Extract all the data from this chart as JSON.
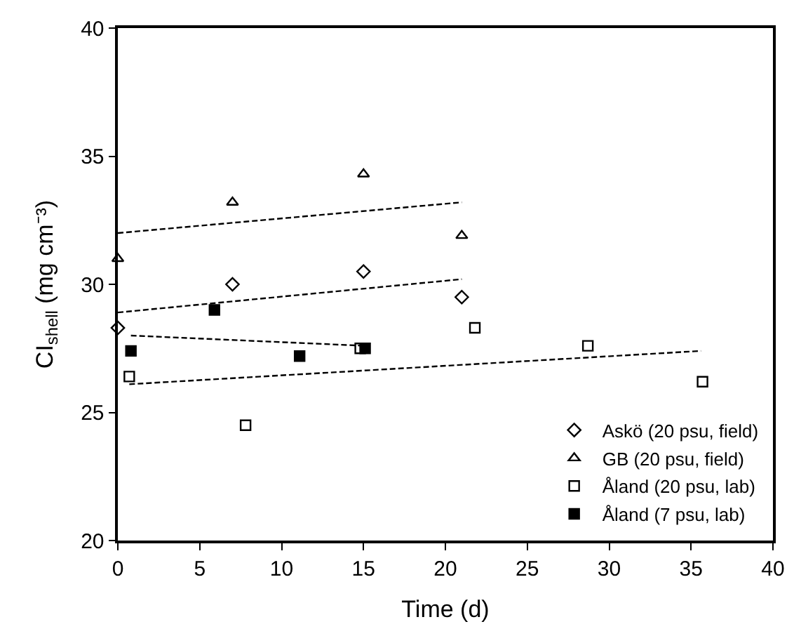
{
  "chart_data": {
    "type": "scatter",
    "xlabel": "Time (d)",
    "ylabel": "CI$_{shell}$ (mg cm⁻³)",
    "xlim": [
      0,
      40
    ],
    "xticks": [
      0,
      5,
      10,
      15,
      20,
      25,
      30,
      35,
      40
    ],
    "ylim": [
      20,
      40
    ],
    "yticks": [
      20,
      25,
      30,
      35,
      40
    ],
    "legend": "bottom right",
    "series": [
      {
        "name": "Askö (20 psu, field)",
        "color": "#000000",
        "marker": "diamond-open",
        "x": [
          0,
          7,
          15,
          21
        ],
        "values": [
          28.3,
          30.0,
          30.5,
          29.5
        ]
      },
      {
        "name": "GB (20 psu, field)",
        "color": "#000000",
        "marker": "triangle-open",
        "x": [
          0,
          7,
          15,
          21
        ],
        "values": [
          31.0,
          33.2,
          34.3,
          31.9
        ]
      },
      {
        "name": "Åland (20 psu, lab)",
        "color": "#000000",
        "marker": "square-open",
        "x": [
          0.7,
          7.8,
          14.8,
          21.8,
          28.7,
          35.7
        ],
        "values": [
          26.4,
          24.5,
          27.5,
          28.3,
          27.6,
          26.2
        ]
      },
      {
        "name": "Åland (7 psu, lab)",
        "color": "#000000",
        "marker": "square",
        "x": [
          0.8,
          5.9,
          11.1,
          15.1
        ],
        "values": [
          27.4,
          29.0,
          27.2,
          27.5
        ]
      },
      {
        "type": "line",
        "color": "#000000",
        "line_style": "dashed",
        "marker": "none",
        "x": [
          0,
          21
        ],
        "values": [
          28.9,
          30.2
        ]
      },
      {
        "type": "line",
        "color": "#000000",
        "line_style": "dashed",
        "marker": "none",
        "x": [
          0,
          21
        ],
        "values": [
          32.0,
          33.2
        ]
      },
      {
        "type": "line",
        "color": "#000000",
        "line_style": "dashed",
        "marker": "none",
        "x": [
          0.7,
          35.6
        ],
        "values": [
          26.1,
          27.4
        ]
      },
      {
        "type": "line",
        "color": "#000000",
        "line_style": "dashed",
        "marker": "none",
        "x": [
          0.8,
          15.1
        ],
        "values": [
          28.0,
          27.6
        ]
      }
    ]
  }
}
